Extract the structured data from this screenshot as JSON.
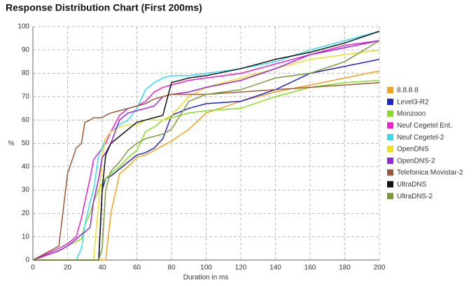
{
  "chart_data": {
    "type": "line",
    "title": "Response Distribution Chart (First 200ms)",
    "x_label": "Duration in ms",
    "y_label": "%",
    "x": [
      0,
      15,
      20,
      25,
      28,
      30,
      33,
      35,
      38,
      40,
      42,
      45,
      50,
      55,
      60,
      65,
      70,
      75,
      80,
      90,
      100,
      120,
      140,
      160,
      180,
      200
    ],
    "xlim": [
      0,
      200
    ],
    "xticks": [
      0,
      20,
      40,
      60,
      80,
      100,
      120,
      140,
      160,
      180,
      200
    ],
    "ylim": [
      0,
      100
    ],
    "yticks": [
      0,
      10,
      20,
      30,
      40,
      50,
      60,
      70,
      80,
      90,
      100
    ],
    "grid": true,
    "legend": "right",
    "series": [
      {
        "name": "8.8.8.8",
        "color": "#f5a31a",
        "values": [
          0,
          0,
          0,
          0,
          0,
          0,
          0,
          0,
          0,
          0,
          0,
          20,
          37,
          40,
          44,
          45,
          47,
          49,
          51,
          56,
          63,
          68,
          72,
          75,
          78,
          81
        ]
      },
      {
        "name": "Level3-R2",
        "color": "#2222cc",
        "values": [
          0,
          0,
          0,
          0,
          0,
          0,
          0,
          0,
          0,
          30,
          35,
          36,
          39,
          42,
          45,
          46,
          48,
          52,
          62,
          65,
          67,
          68,
          73,
          80,
          83,
          86
        ]
      },
      {
        "name": "Monzoon",
        "color": "#88dd22",
        "values": [
          0,
          4,
          6,
          8,
          9,
          15,
          20,
          25,
          30,
          33,
          35,
          37,
          40,
          44,
          47,
          55,
          57,
          60,
          61,
          63,
          64,
          65,
          70,
          74,
          76,
          77
        ]
      },
      {
        "name": "Neuf Cegetel Ent.",
        "color": "#ee22cc",
        "values": [
          0,
          5,
          7,
          10,
          18,
          25,
          35,
          43,
          46,
          48,
          50,
          55,
          62,
          65,
          66,
          68,
          72,
          74,
          75,
          77,
          78,
          80,
          84,
          88,
          92,
          94
        ]
      },
      {
        "name": "Neuf Cegetel-2",
        "color": "#33ddee",
        "values": [
          0,
          0,
          0,
          0,
          5,
          15,
          25,
          30,
          45,
          48,
          52,
          55,
          58,
          60,
          65,
          73,
          76,
          78,
          79,
          79,
          80,
          82,
          85,
          90,
          94,
          98
        ]
      },
      {
        "name": "OpenDNS",
        "color": "#f0dd22",
        "values": [
          0,
          0,
          0,
          0,
          0,
          0,
          0,
          0,
          25,
          45,
          52,
          55,
          57,
          58,
          58,
          60,
          60,
          60,
          62,
          70,
          74,
          78,
          82,
          86,
          88,
          90
        ]
      },
      {
        "name": "OpenDNS-2",
        "color": "#9922dd",
        "values": [
          0,
          4,
          6,
          9,
          11,
          12,
          14,
          25,
          35,
          44,
          46,
          50,
          60,
          63,
          64,
          65,
          66,
          70,
          71,
          72,
          74,
          77,
          82,
          88,
          91,
          94
        ]
      },
      {
        "name": "Telefonica Movistar-2",
        "color": "#9a5a3a",
        "values": [
          0,
          6,
          37,
          48,
          50,
          59,
          60,
          61,
          61,
          61,
          62,
          63,
          64,
          65,
          66,
          67,
          69,
          70,
          71,
          71,
          71,
          72,
          73,
          74,
          75,
          76
        ]
      },
      {
        "name": "UltraDNS",
        "color": "#111111",
        "values": [
          0,
          0,
          0,
          0,
          0,
          0,
          0,
          0,
          0,
          30,
          45,
          50,
          53,
          56,
          59,
          60,
          61,
          62,
          76,
          78,
          79,
          82,
          86,
          89,
          93,
          98
        ]
      },
      {
        "name": "UltraDNS-2",
        "color": "#7a9a3a",
        "values": [
          0,
          0,
          0,
          0,
          0,
          0,
          0,
          0,
          0,
          5,
          30,
          38,
          42,
          47,
          50,
          52,
          53,
          54,
          56,
          68,
          71,
          73,
          78,
          80,
          85,
          94
        ]
      }
    ]
  }
}
